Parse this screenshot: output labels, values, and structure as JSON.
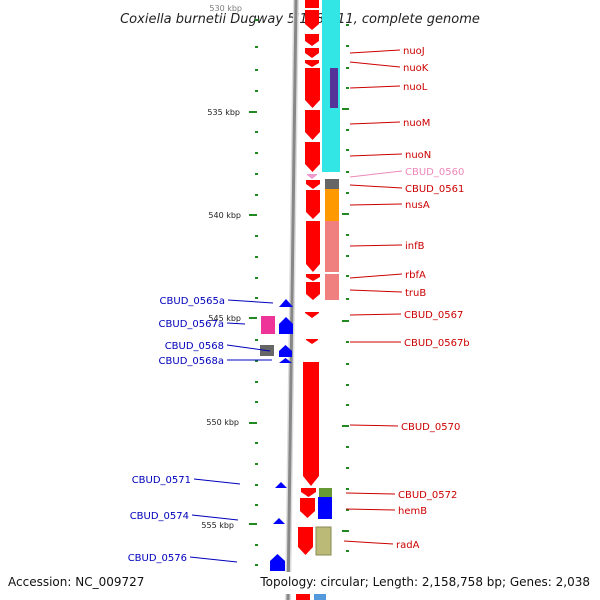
{
  "title": "Coxiella burnetii Dugway 5J108-111, complete genome",
  "ruler": {
    "partial_top_label": "530 kbp",
    "labels": [
      "535 kbp",
      "540 kbp",
      "545 kbp",
      "550 kbp",
      "555 kbp"
    ]
  },
  "right_labels": [
    {
      "text": "nuoJ",
      "color": "#cc0000"
    },
    {
      "text": "nuoK",
      "color": "#cc0000"
    },
    {
      "text": "nuoL",
      "color": "#cc0000"
    },
    {
      "text": "nuoM",
      "color": "#cc0000"
    },
    {
      "text": "nuoN",
      "color": "#cc0000"
    },
    {
      "text": "CBUD_0560",
      "color": "#ee88bb"
    },
    {
      "text": "CBUD_0561",
      "color": "#cc0000"
    },
    {
      "text": "nusA",
      "color": "#cc0000"
    },
    {
      "text": "infB",
      "color": "#cc0000"
    },
    {
      "text": "rbfA",
      "color": "#cc0000"
    },
    {
      "text": "truB",
      "color": "#cc0000"
    },
    {
      "text": "CBUD_0567",
      "color": "#cc0000"
    },
    {
      "text": "CBUD_0567b",
      "color": "#cc0000"
    },
    {
      "text": "CBUD_0570",
      "color": "#cc0000"
    },
    {
      "text": "CBUD_0572",
      "color": "#cc0000"
    },
    {
      "text": "hemB",
      "color": "#cc0000"
    },
    {
      "text": "radA",
      "color": "#cc0000"
    }
  ],
  "left_labels": [
    {
      "text": "CBUD_0565a",
      "color": "#0000bb"
    },
    {
      "text": "CBUD_0567a",
      "color": "#0000bb"
    },
    {
      "text": "CBUD_0568",
      "color": "#0000bb"
    },
    {
      "text": "CBUD_0568a",
      "color": "#0000bb"
    },
    {
      "text": "CBUD_0571",
      "color": "#0000bb"
    },
    {
      "text": "CBUD_0574",
      "color": "#0000bb"
    },
    {
      "text": "CBUD_0576",
      "color": "#0000bb"
    }
  ],
  "footer": {
    "accession": "Accession: NC_009727",
    "summary": "Topology: circular; Length: 2,158,758 bp; Genes: 2,038"
  },
  "colors": {
    "forward_gene": "#ff0000",
    "reverse_gene": "#0000ff",
    "backbone": "#888888",
    "tick": "#228822",
    "cog_cyan": "#33e6e6",
    "cog_orange": "#ff9900",
    "cog_salmon": "#f08080"
  }
}
